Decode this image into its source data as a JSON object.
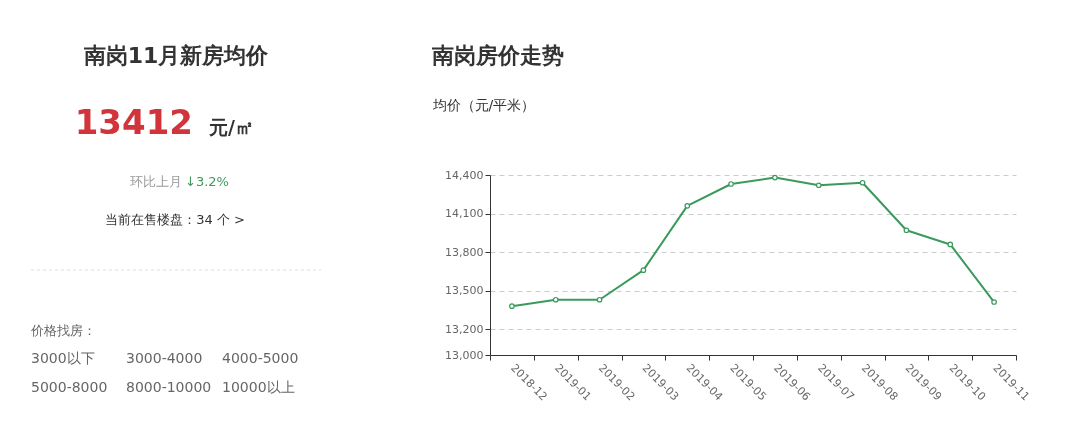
{
  "chart_data": [
    {
      "type": "other",
      "title": "南岗11月新房均价",
      "annotations": [
        "13412",
        "元/㎡",
        "环比上月",
        "↓3.2%",
        "当前在售楼盘：34 个 >",
        "价格找房：",
        "3000以下",
        "3000-4000",
        "4000-5000",
        "5000-8000",
        "8000-10000",
        "10000以上"
      ]
    },
    {
      "type": "line",
      "title": "南岗房价走势",
      "ylabel": "均价（元/平米）",
      "categories": [
        "2018-12",
        "2019-01",
        "2019-02",
        "2019-03",
        "2019-04",
        "2019-05",
        "2019-06",
        "2019-07",
        "2019-08",
        "2019-09",
        "2019-10",
        "2019-11"
      ],
      "series": [
        {
          "color": "#3a9a5c",
          "values": [
            13380,
            13430,
            13430,
            13660,
            14160,
            14330,
            14380,
            14320,
            14340,
            13970,
            13860,
            13412
          ]
        }
      ],
      "ylim": [
        13000,
        14400
      ],
      "yticks": [
        {
          "value": 13000,
          "label": "13,000"
        },
        {
          "value": 13200,
          "label": "13,200"
        },
        {
          "value": 13500,
          "label": "13,500"
        },
        {
          "value": 13800,
          "label": "13,800"
        },
        {
          "value": 14100,
          "label": "14,100"
        },
        {
          "value": 14400,
          "label": "14,400"
        }
      ],
      "grid": "y",
      "marker": "circle",
      "line_style": "solid",
      "legend": false
    }
  ]
}
